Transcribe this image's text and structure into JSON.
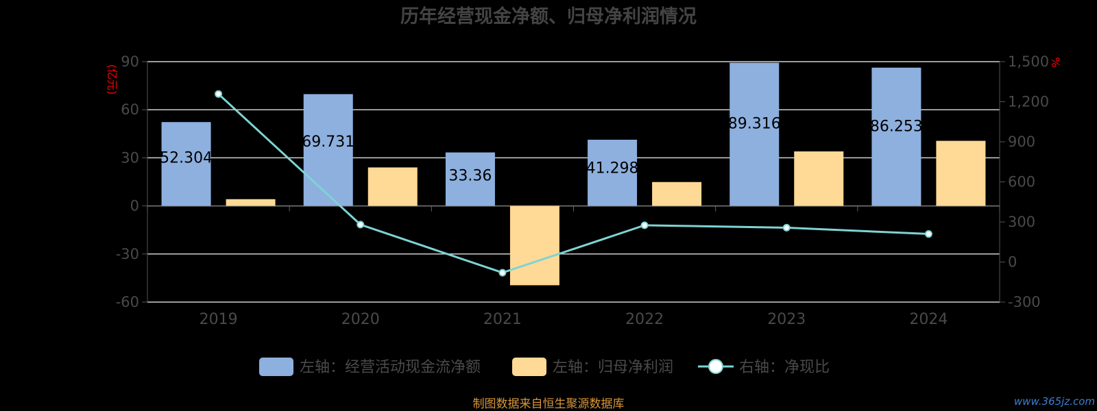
{
  "chart_data": {
    "type": "bar",
    "title": "历年经营现金净额、归母净利润情况",
    "categories": [
      "2019",
      "2020",
      "2021",
      "2022",
      "2023",
      "2024"
    ],
    "series": [
      {
        "name": "左轴：经营活动现金流净额",
        "type": "bar",
        "axis": "left",
        "color": "#8eb0de",
        "values": [
          52.304,
          69.731,
          33.36,
          41.298,
          89.316,
          86.253
        ],
        "labels": [
          "52.304",
          "69.731",
          "33.36",
          "41.298",
          "89.316",
          "86.253"
        ]
      },
      {
        "name": "左轴：归母净利润",
        "type": "bar",
        "axis": "left",
        "color": "#ffd996",
        "values": [
          4.2,
          24.0,
          -49.5,
          14.9,
          34.0,
          40.6
        ]
      },
      {
        "name": "右轴：净现比",
        "type": "line",
        "axis": "right",
        "color": "#7fd3d3",
        "values": [
          1258,
          280,
          -80,
          275,
          257,
          210
        ]
      }
    ],
    "left_axis": {
      "unit": "(亿元)",
      "ylim": [
        -60,
        90
      ],
      "ticks": [
        "90",
        "60",
        "30",
        "0",
        "-30",
        "-60"
      ]
    },
    "right_axis": {
      "unit": "%",
      "ylim": [
        -300,
        1500
      ],
      "ticks": [
        "1,500",
        "1,200",
        "900",
        "600",
        "300",
        "0",
        "-300"
      ]
    },
    "legend_position": "bottom",
    "grid": true
  },
  "source_note": "制图数据来自恒生聚源数据库",
  "watermark": "www.365jz.com"
}
